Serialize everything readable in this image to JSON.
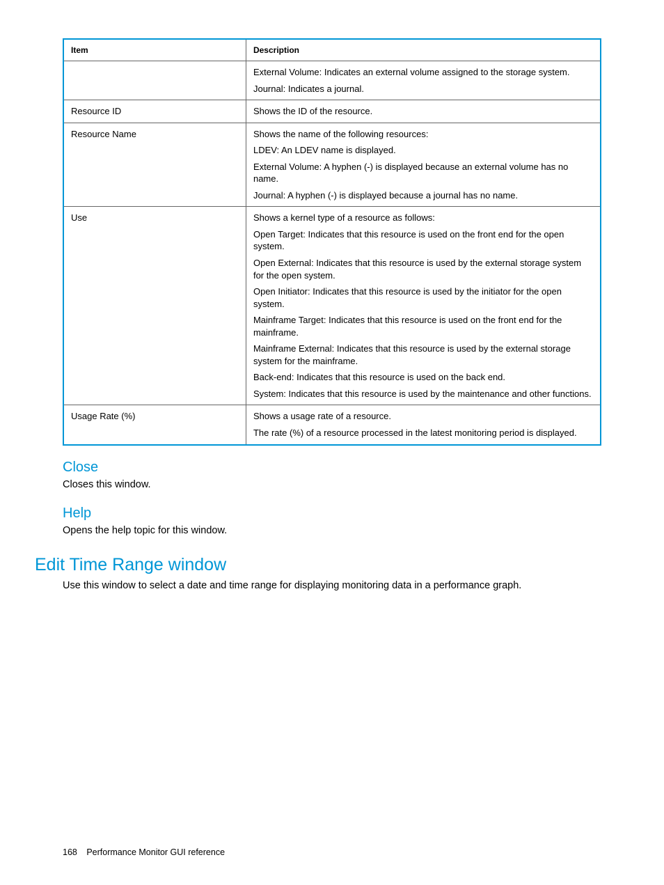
{
  "table": {
    "headers": {
      "item": "Item",
      "description": "Description"
    },
    "rows": [
      {
        "item": "",
        "desc": [
          "External Volume: Indicates an external volume assigned to the storage system.",
          "Journal: Indicates a journal."
        ]
      },
      {
        "item": "Resource ID",
        "desc": [
          "Shows the ID of the resource."
        ]
      },
      {
        "item": "Resource Name",
        "desc": [
          "Shows the name of the following resources:",
          "LDEV: An LDEV name is displayed.",
          "External Volume: A hyphen (-) is displayed because an external volume has no name.",
          "Journal: A hyphen (-) is displayed because a journal has no name."
        ]
      },
      {
        "item": "Use",
        "desc": [
          "Shows a kernel type of a resource as follows:",
          "Open Target: Indicates that this resource is used on the front end for the open system.",
          "Open External: Indicates that this resource is used by the external storage system for the open system.",
          "Open Initiator: Indicates that this resource is used by the initiator for the open system.",
          "Mainframe Target: Indicates that this resource is used on the front end for the mainframe.",
          "Mainframe External: Indicates that this resource is used by the external storage system for the mainframe.",
          "Back-end: Indicates that this resource is used on the back end.",
          "System: Indicates that this resource is used by the maintenance and other functions."
        ]
      },
      {
        "item": "Usage Rate (%)",
        "desc": [
          "Shows a usage rate of a resource.",
          "The rate (%) of a resource processed in the latest monitoring period is displayed."
        ]
      }
    ]
  },
  "sections": {
    "close": {
      "title": "Close",
      "body": "Closes this window."
    },
    "help": {
      "title": "Help",
      "body": "Opens the help topic for this window."
    },
    "edit": {
      "title": "Edit Time Range window",
      "body": "Use this window to select a date and time range for displaying monitoring data in a performance graph."
    }
  },
  "footer": {
    "page": "168",
    "title": "Performance Monitor GUI reference"
  },
  "colors": {
    "accent": "#0096d6",
    "rule": "#666666",
    "text": "#000000",
    "bg": "#ffffff"
  }
}
